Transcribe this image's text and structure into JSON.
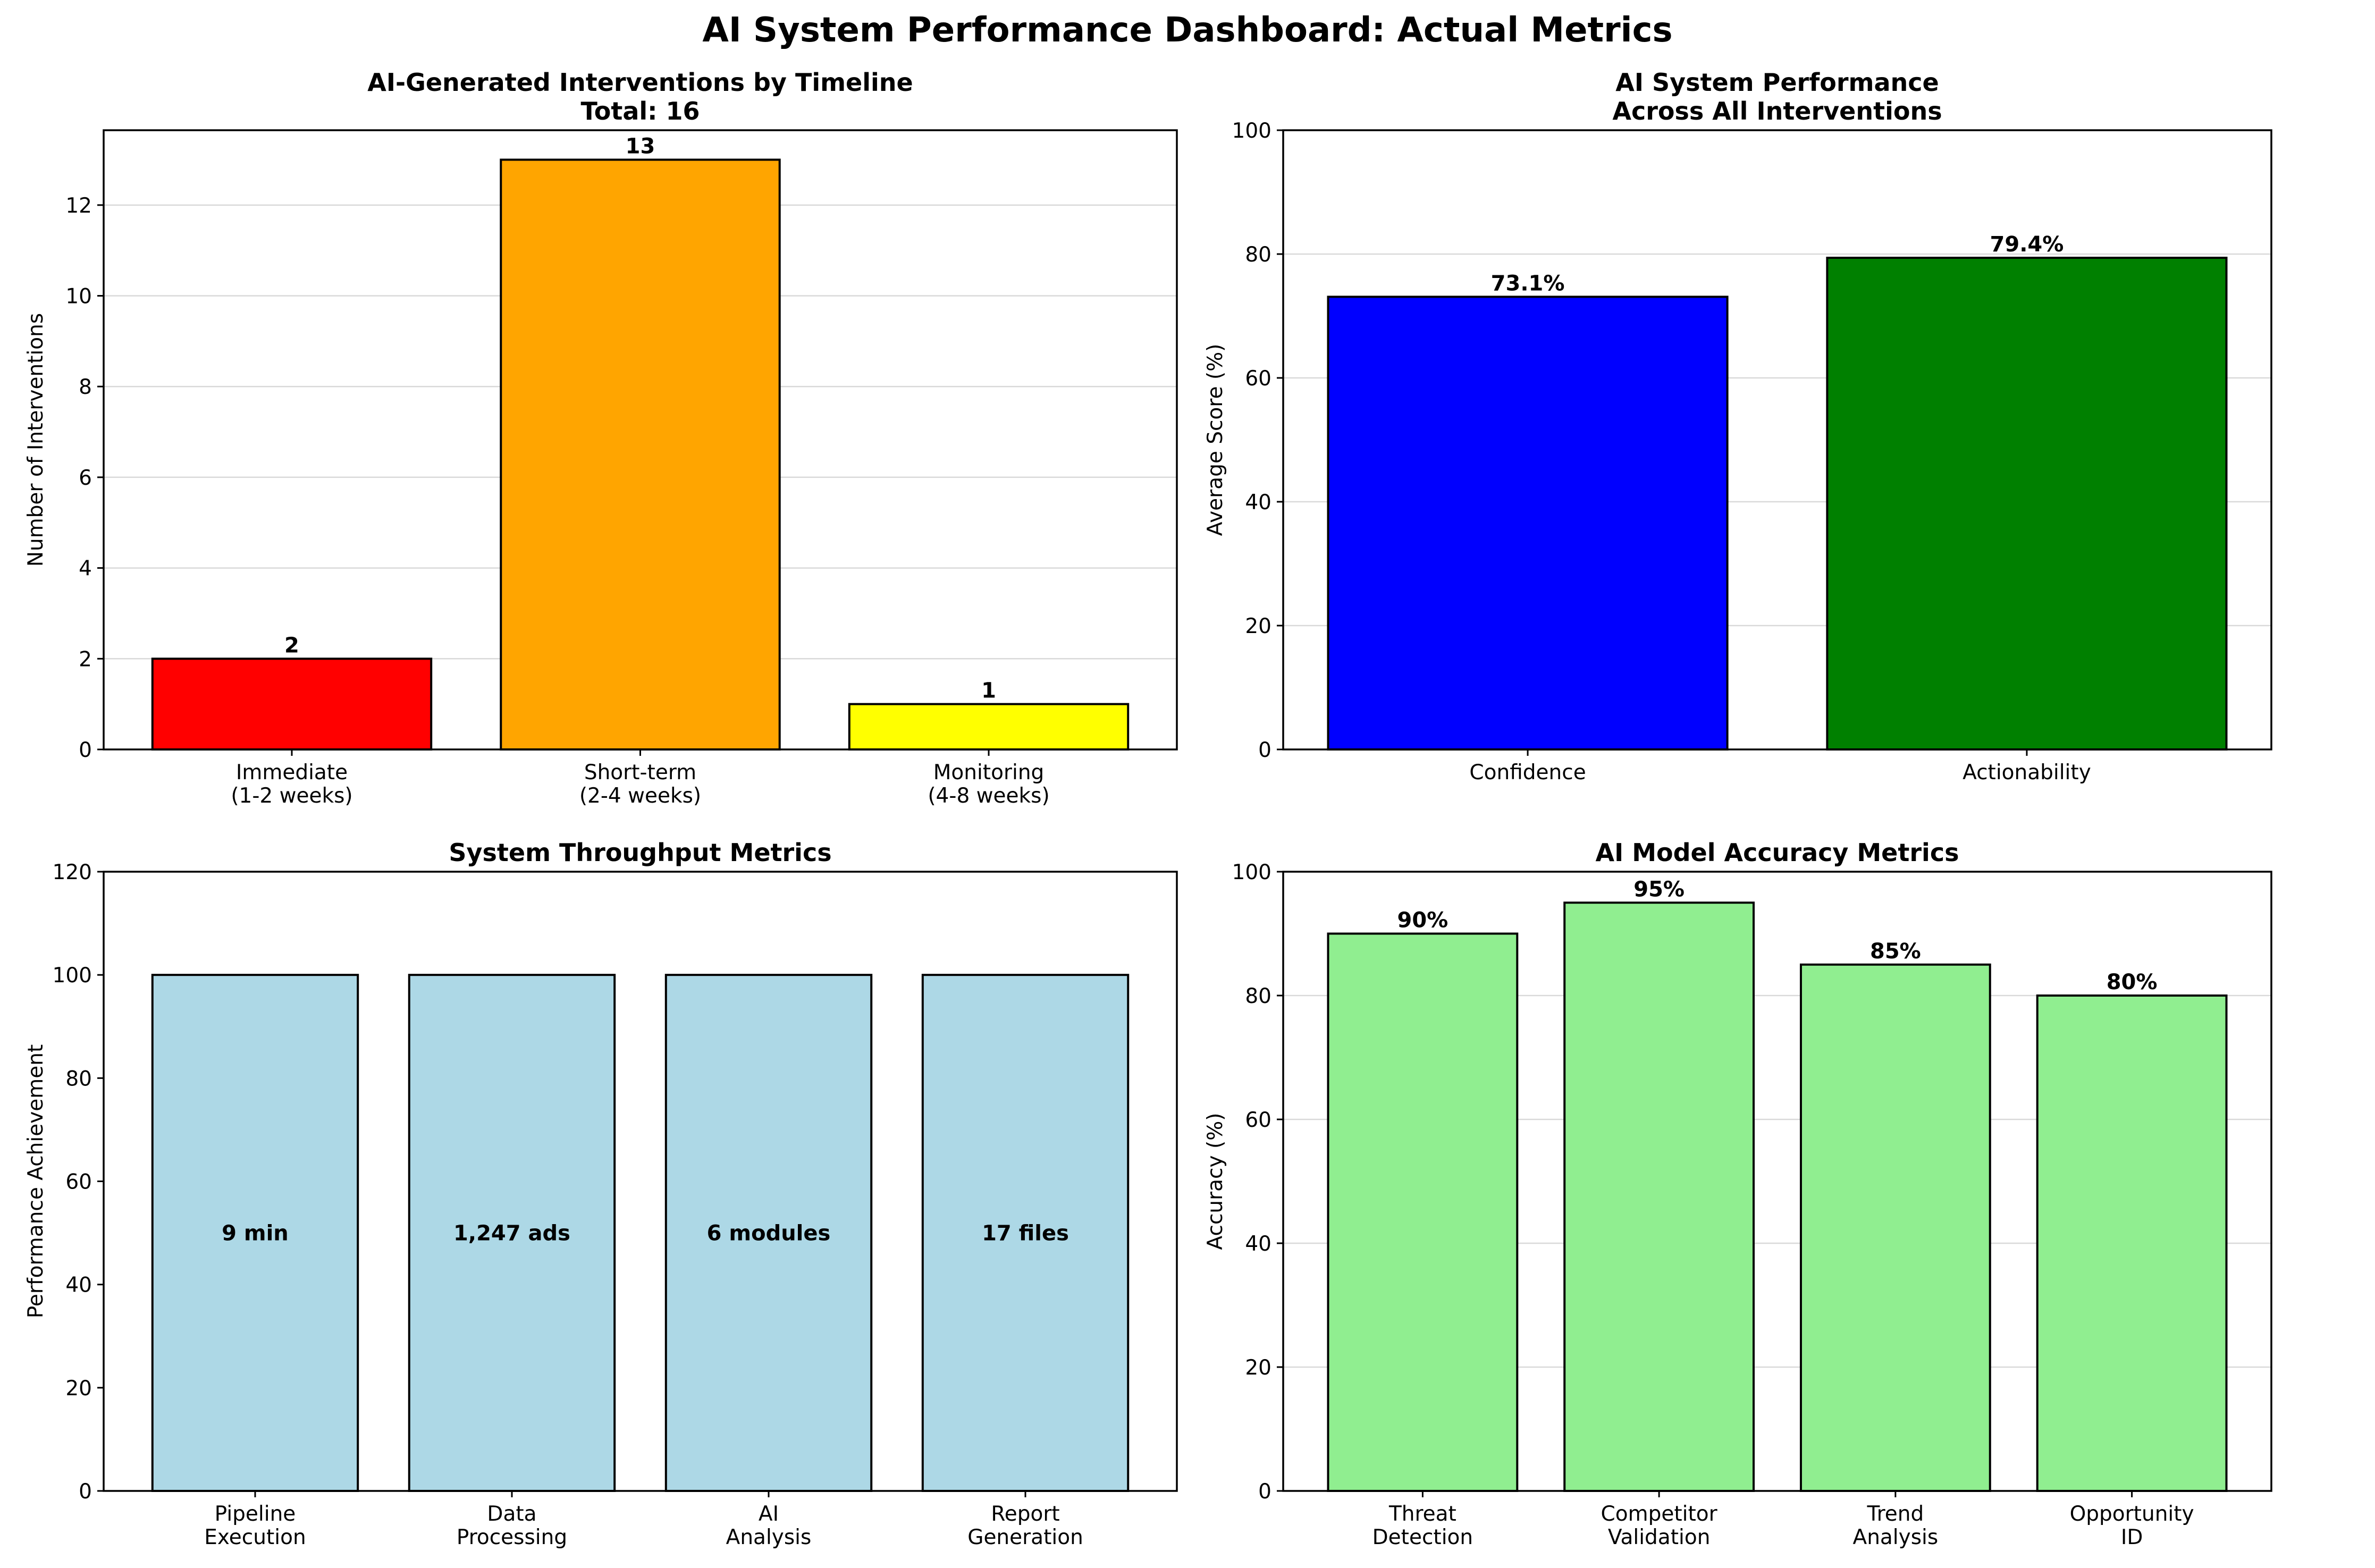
{
  "title": "AI System Performance Dashboard: Actual Metrics",
  "chart_data": [
    {
      "id": "interventions",
      "type": "bar",
      "title": "AI-Generated Interventions by Timeline\nTotal: 16",
      "xlabel": "",
      "ylabel": "Number of Interventions",
      "categories": [
        "Immediate\n(1-2 weeks)",
        "Short-term\n(2-4 weeks)",
        "Monitoring\n(4-8 weeks)"
      ],
      "values": [
        2,
        13,
        1
      ],
      "value_labels": [
        "2",
        "13",
        "1"
      ],
      "colors": [
        "#ff0000",
        "#ffa500",
        "#ffff00"
      ],
      "ylim": [
        0,
        13.65
      ],
      "yticks": [
        0,
        2,
        4,
        6,
        8,
        10,
        12
      ],
      "grid": true,
      "label_position": "above"
    },
    {
      "id": "performance",
      "type": "bar",
      "title": "AI System Performance\nAcross All Interventions",
      "xlabel": "",
      "ylabel": "Average Score (%)",
      "categories": [
        "Confidence",
        "Actionability"
      ],
      "values": [
        73.1,
        79.4
      ],
      "value_labels": [
        "73.1%",
        "79.4%"
      ],
      "colors": [
        "#0000ff",
        "#008000"
      ],
      "ylim": [
        0,
        100
      ],
      "yticks": [
        0,
        20,
        40,
        60,
        80,
        100
      ],
      "grid": true,
      "label_position": "above"
    },
    {
      "id": "throughput",
      "type": "bar",
      "title": "System Throughput Metrics",
      "xlabel": "",
      "ylabel": "Performance Achievement",
      "categories": [
        "Pipeline\nExecution",
        "Data\nProcessing",
        "AI\nAnalysis",
        "Report\nGeneration"
      ],
      "values": [
        100,
        100,
        100,
        100
      ],
      "value_labels": [
        "9 min",
        "1,247 ads",
        "6 modules",
        "17 files"
      ],
      "colors": [
        "#add8e6",
        "#add8e6",
        "#add8e6",
        "#add8e6"
      ],
      "ylim": [
        0,
        120
      ],
      "yticks": [
        0,
        20,
        40,
        60,
        80,
        100,
        120
      ],
      "grid": false,
      "label_position": "middle"
    },
    {
      "id": "accuracy",
      "type": "bar",
      "title": "AI Model Accuracy Metrics",
      "xlabel": "",
      "ylabel": "Accuracy (%)",
      "categories": [
        "Threat\nDetection",
        "Competitor\nValidation",
        "Trend\nAnalysis",
        "Opportunity\nID"
      ],
      "values": [
        90,
        95,
        85,
        80
      ],
      "value_labels": [
        "90%",
        "95%",
        "85%",
        "80%"
      ],
      "colors": [
        "#90ee90",
        "#90ee90",
        "#90ee90",
        "#90ee90"
      ],
      "ylim": [
        0,
        100
      ],
      "yticks": [
        0,
        20,
        40,
        60,
        80,
        100
      ],
      "grid": true,
      "label_position": "above"
    }
  ]
}
